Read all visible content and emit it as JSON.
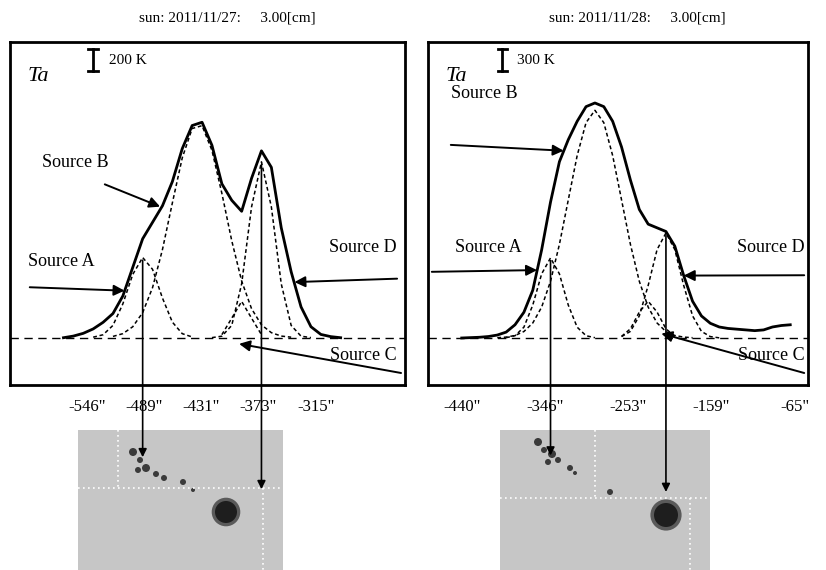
{
  "chart_data": [
    {
      "type": "line",
      "title": "sun: 2011/11/27:     3.00[cm]",
      "ylabel": "Ta",
      "scale_bar": {
        "value": 200,
        "label": "200 K"
      },
      "baseline": 0,
      "x": [
        -570,
        -560,
        -550,
        -540,
        -530,
        -520,
        -510,
        -500,
        -490,
        -480,
        -470,
        -460,
        -450,
        -440,
        -430,
        -420,
        -410,
        -400,
        -390,
        -380,
        -370,
        -360,
        -350,
        -340,
        -330,
        -320,
        -310,
        -300,
        -290
      ],
      "series": [
        {
          "color": "#000000",
          "line_style": "solid",
          "values": [
            0,
            15,
            40,
            80,
            140,
            220,
            380,
            640,
            900,
            1050,
            1200,
            1420,
            1720,
            1930,
            1960,
            1750,
            1400,
            1250,
            1150,
            1450,
            1700,
            1550,
            1000,
            600,
            280,
            100,
            30,
            10,
            0
          ]
        },
        {
          "name": "Source A",
          "color": "#000000",
          "line_style": "dotted",
          "values": [
            null,
            null,
            null,
            5,
            27,
            112,
            308,
            576,
            730,
            622,
            361,
            142,
            37,
            7,
            null,
            null,
            null,
            null,
            null,
            null,
            null,
            null,
            null,
            null,
            null,
            null,
            null,
            null,
            null
          ]
        },
        {
          "name": "Source B",
          "color": "#000000",
          "line_style": "dotted",
          "values": [
            null,
            null,
            null,
            null,
            null,
            12,
            37,
            100,
            228,
            456,
            802,
            1226,
            1636,
            1903,
            1929,
            1704,
            1314,
            882,
            516,
            264,
            117,
            46,
            15,
            5,
            null,
            null,
            null,
            null,
            null
          ]
        },
        {
          "name": "Source C",
          "color": "#000000",
          "line_style": "dotted",
          "values": [
            null,
            null,
            null,
            null,
            null,
            null,
            null,
            null,
            null,
            null,
            null,
            null,
            null,
            null,
            null,
            null,
            28,
            178,
            330,
            178,
            28,
            null,
            null,
            null,
            null,
            null,
            null,
            null,
            null
          ]
        },
        {
          "name": "Source D",
          "color": "#000000",
          "line_style": "dotted",
          "values": [
            null,
            null,
            null,
            null,
            null,
            null,
            null,
            null,
            null,
            null,
            null,
            null,
            null,
            null,
            null,
            1,
            14,
            112,
            490,
            1190,
            1600,
            1190,
            490,
            112,
            14,
            1,
            null,
            null,
            null
          ]
        }
      ],
      "xlim": [
        -624,
        -225
      ],
      "ylim": [
        -430,
        2690
      ],
      "xticks": [
        {
          "value": -546,
          "label": "-546\""
        },
        {
          "value": -489,
          "label": "-489\""
        },
        {
          "value": -431,
          "label": "-431\""
        },
        {
          "value": -373,
          "label": "-373\""
        },
        {
          "value": -315,
          "label": "-315\""
        }
      ],
      "tick_labels": "x"
    },
    {
      "type": "line",
      "title": "sun: 2011/11/28:     3.00[cm]",
      "ylabel": "Ta",
      "scale_bar": {
        "value": 300,
        "label": "300 K"
      },
      "baseline": 0,
      "x": [
        -440,
        -430,
        -420,
        -410,
        -400,
        -390,
        -380,
        -370,
        -360,
        -350,
        -340,
        -330,
        -320,
        -310,
        -300,
        -290,
        -280,
        -270,
        -260,
        -250,
        -240,
        -230,
        -220,
        -210,
        -200,
        -190,
        -180,
        -170,
        -160,
        -150,
        -140,
        -130,
        -120,
        -110,
        -100,
        -90,
        -80,
        -70
      ],
      "series": [
        {
          "color": "#000000",
          "line_style": "solid",
          "values": [
            0,
            5,
            10,
            20,
            40,
            80,
            180,
            350,
            650,
            1200,
            1850,
            2400,
            2700,
            2950,
            3150,
            3200,
            3150,
            2950,
            2600,
            2150,
            1750,
            1550,
            1500,
            1450,
            1250,
            850,
            500,
            300,
            200,
            150,
            130,
            120,
            110,
            100,
            110,
            150,
            170,
            180
          ]
        },
        {
          "name": "Source A",
          "color": "#000000",
          "line_style": "dotted",
          "values": [
            null,
            null,
            null,
            null,
            null,
            4,
            31,
            147,
            448,
            873,
            1090,
            873,
            448,
            147,
            31,
            4,
            null,
            null,
            null,
            null,
            null,
            null,
            null,
            null,
            null,
            null,
            null,
            null,
            null,
            null,
            null,
            null,
            null,
            null,
            null,
            null,
            null,
            null
          ]
        },
        {
          "name": "Source B",
          "color": "#000000",
          "line_style": "dotted",
          "values": [
            null,
            null,
            null,
            null,
            4,
            12,
            34,
            88,
            204,
            420,
            772,
            1274,
            1880,
            2483,
            2932,
            3100,
            2932,
            2483,
            1880,
            1274,
            772,
            420,
            204,
            88,
            34,
            12,
            4,
            null,
            null,
            null,
            null,
            null,
            null,
            null,
            null,
            null,
            null,
            null
          ]
        },
        {
          "name": "Source C",
          "color": "#000000",
          "line_style": "dotted",
          "values": [
            null,
            null,
            null,
            null,
            null,
            null,
            null,
            null,
            null,
            null,
            null,
            null,
            null,
            null,
            null,
            null,
            null,
            null,
            22,
            125,
            353,
            500,
            353,
            125,
            22,
            null,
            null,
            null,
            null,
            null,
            null,
            null,
            null,
            null,
            null,
            null,
            null,
            null
          ]
        },
        {
          "name": "Source D",
          "color": "#000000",
          "line_style": "dotted",
          "values": [
            null,
            null,
            null,
            null,
            null,
            null,
            null,
            null,
            null,
            null,
            null,
            null,
            null,
            null,
            null,
            null,
            null,
            null,
            19,
            90,
            301,
            716,
            1203,
            1430,
            1203,
            716,
            301,
            90,
            19,
            2,
            null,
            null,
            null,
            null,
            null,
            null,
            null,
            null
          ]
        }
      ],
      "xlim": [
        -478,
        -50
      ],
      "ylim": [
        -640,
        4030
      ],
      "xticks": [
        {
          "value": -440,
          "label": "-440\""
        },
        {
          "value": -346,
          "label": "-346\""
        },
        {
          "value": -253,
          "label": "-253\""
        },
        {
          "value": -159,
          "label": "-159\""
        },
        {
          "value": -65,
          "label": "-65\""
        }
      ],
      "tick_labels": "x"
    }
  ]
}
